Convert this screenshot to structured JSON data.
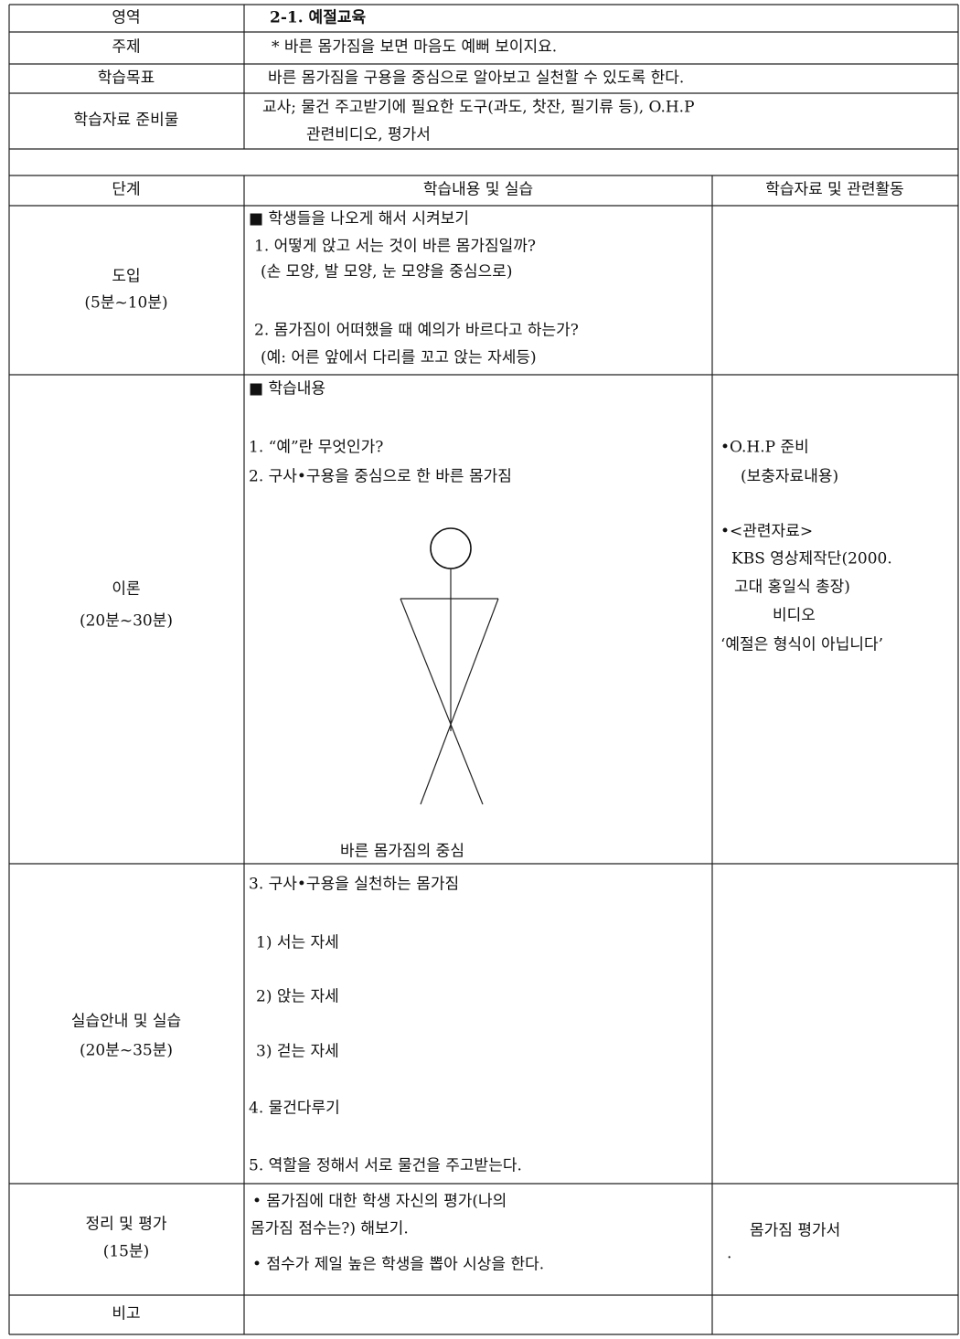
{
  "info": [
    {
      "label": "영역",
      "value": "2-1. 예절교육"
    },
    {
      "label": "주제",
      "value": "* 바른 몸가짐을 보면 마음도 예뻐 보이지요."
    },
    {
      "label": "학습목표",
      "value": "바른 몸가짐을 구용을 중심으로 알아보고 실천할 수 있도록 한다."
    },
    {
      "label": "학습자료 준비물",
      "lines": [
        "교사; 물건 주고받기에 필요한 도구(과도, 찻잔, 필기류 등),  O.H.P",
        "관련비디오, 평가서"
      ]
    }
  ],
  "table": {
    "headers": [
      "단계",
      "학습내용 및 실습",
      "학습자료 및 관련활동"
    ],
    "rows": [
      {
        "stage": [
          "도입",
          "(5분~10분)"
        ],
        "content": [
          "■ 학생들을 나오게 해서 시켜보기",
          "1. 어떻게 앉고 서는 것이 바른 몸가짐일까?",
          "(손 모양, 발 모양, 눈 모양을 중심으로)",
          "2. 몸가짐이 어떠했을 때 예의가 바르다고 하는가?",
          "(예: 어른 앞에서 다리를 꼬고 앉는 자세등)"
        ]
      },
      {
        "stage": [
          "이론",
          "(20분~30분)"
        ],
        "content": [
          "■ 학습내용",
          "1. “예”란 무엇인가?",
          "2. 구사•구용을 중심으로 한 바른 몸가짐"
        ],
        "figure_caption": "바른 몸가짐의 중심",
        "materials": [
          "•O.H.P 준비",
          "(보충자료내용)",
          "•<관련자료>",
          "KBS 영상제작단(2000.",
          "고대 홍일식 총장)",
          "비디오",
          "‘예절은 형식이 아닙니다’"
        ]
      },
      {
        "stage": [
          "실습안내 및 실습",
          "(20분~35분)"
        ],
        "content": [
          "3. 구사•구용을 실천하는 몸가짐",
          "1) 서는 자세",
          "2) 앉는 자세",
          "3) 걷는 자세",
          "4. 물건다루기",
          "5. 역할을 정해서 서로 물건을 주고받는다."
        ]
      },
      {
        "stage": [
          "정리 및 평가",
          "(15분)"
        ],
        "content": [
          "• 몸가짐에 대한 학생 자신의 평가(나의",
          "몸가짐 점수는?) 해보기.",
          "• 점수가 제일 높은 학생을 뽑아 시상을 한다."
        ],
        "materials": [
          "몸가짐 평가서",
          "."
        ]
      },
      {
        "stage": [
          "비고"
        ]
      }
    ]
  }
}
